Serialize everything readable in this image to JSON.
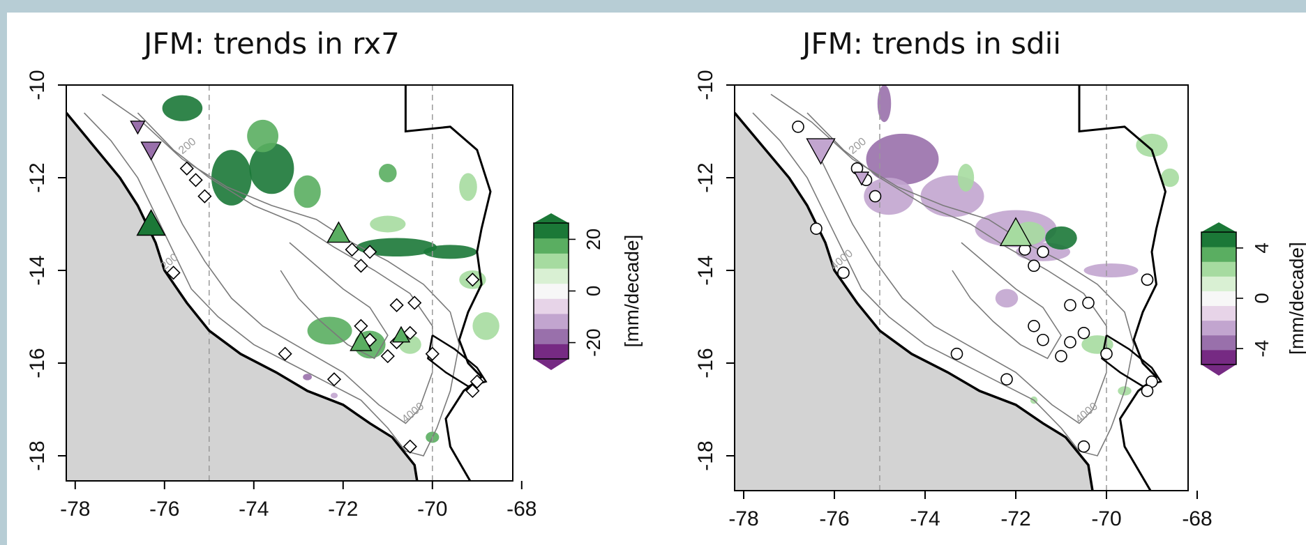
{
  "panels": [
    {
      "id": "rx7",
      "title": "JFM: trends in rx7",
      "x_ticks": [
        "-78",
        "-76",
        "-74",
        "-72",
        "-70",
        "-68"
      ],
      "y_ticks": [
        "-10",
        "-12",
        "-14",
        "-16",
        "-18"
      ],
      "colorbar": {
        "ticks": [
          "20",
          "0",
          "-20"
        ],
        "unit": "[mm/decade]"
      },
      "station_marker": "diamond",
      "contour_labels": [
        "200",
        "200",
        "4000"
      ]
    },
    {
      "id": "sdii",
      "title": "JFM: trends in sdii",
      "x_ticks": [
        "-78",
        "-76",
        "-74",
        "-72",
        "-70",
        "-68"
      ],
      "y_ticks": [
        "-10",
        "-12",
        "-14",
        "-16",
        "-18"
      ],
      "colorbar": {
        "ticks": [
          "4",
          "0",
          "-4"
        ],
        "unit": "[mm/decade]"
      },
      "station_marker": "circle",
      "contour_labels": [
        "200",
        "4000",
        "4000"
      ]
    }
  ],
  "colors": {
    "ocean": "#d3d3d3",
    "green_dark": "#1b7837",
    "green_mid": "#5aae61",
    "green_light": "#a6dba0",
    "purple_dark": "#762a83",
    "purple_mid": "#9970ab",
    "purple_light": "#c2a5cf",
    "contour": "#7a7a7a",
    "background": "#b7cdd5"
  }
}
